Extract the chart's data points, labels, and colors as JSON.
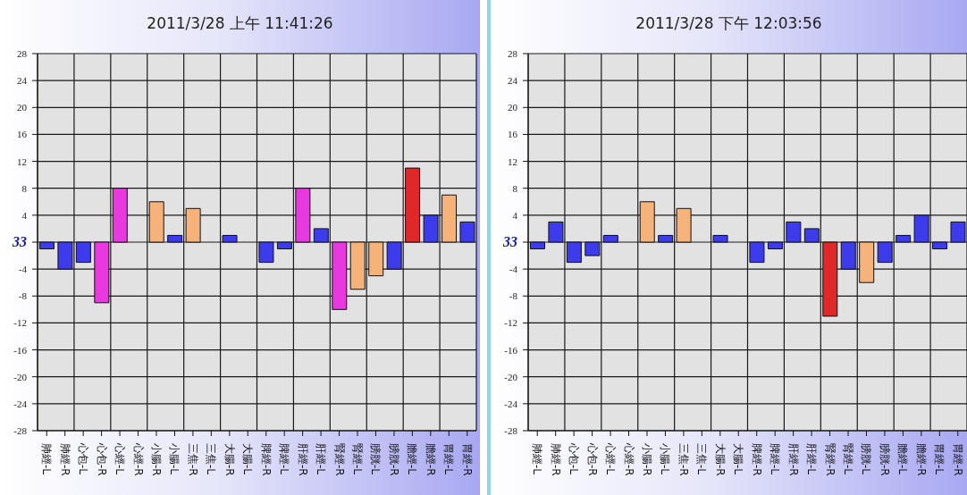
{
  "chart_data": [
    {
      "type": "bar",
      "title": "2011/3/28 上午 11:41:26",
      "categories": [
        "肺經-L",
        "肺經-R",
        "心包-L",
        "心包-R",
        "心經-L",
        "心經-R",
        "小腸-R",
        "小腸-L",
        "三焦-R",
        "三焦-L",
        "大腸-R",
        "大腸-L",
        "脾經-R",
        "脾經-L",
        "肝經-R",
        "肝經-L",
        "腎經-R",
        "腎經-L",
        "膀胱-L",
        "膀胱-R",
        "膽經-L",
        "膽經-R",
        "胃經-L",
        "胃經-R"
      ],
      "values": [
        -1,
        -4,
        -3,
        -9,
        8,
        0,
        6,
        1,
        5,
        0,
        1,
        0,
        -3,
        -1,
        8,
        2,
        -10,
        -7,
        -5,
        -4,
        11,
        4,
        7,
        3
      ],
      "colors": [
        "#3c3cec",
        "#3c3cec",
        "#3c3cec",
        "#e838e0",
        "#e838e0",
        "#3c3cec",
        "#f5b27a",
        "#3c3cec",
        "#f5b27a",
        "#3c3cec",
        "#3c3cec",
        "#3c3cec",
        "#3c3cec",
        "#3c3cec",
        "#e838e0",
        "#3c3cec",
        "#e838e0",
        "#f5b27a",
        "#f5b27a",
        "#3c3cec",
        "#e02828",
        "#3c3cec",
        "#f5b27a",
        "#3c3cec"
      ],
      "ylim": [
        -28,
        28
      ],
      "yticks": [
        -28,
        -24,
        -20,
        -16,
        -12,
        -8,
        -4,
        {
          "value": 0,
          "label": null
        },
        4,
        8,
        12,
        16,
        20,
        24,
        28
      ],
      "grid": true,
      "annotations": [
        "33"
      ]
    },
    {
      "type": "bar",
      "title": "2011/3/28 下午 12:03:56",
      "categories": [
        "肺經-L",
        "肺經-R",
        "心包-L",
        "心包-R",
        "心經-L",
        "心經-R",
        "小腸-R",
        "小腸-L",
        "三焦-R",
        "三焦-L",
        "大腸-R",
        "大腸-L",
        "脾經-R",
        "脾經-L",
        "肝經-R",
        "肝經-L",
        "腎經-R",
        "腎經-L",
        "膀胱-L",
        "膀胱-R",
        "膽經-L",
        "膽經-R",
        "胃經-L",
        "胃經-R"
      ],
      "values": [
        -1,
        3,
        -3,
        -2,
        1,
        0,
        6,
        1,
        5,
        0,
        1,
        0,
        -3,
        -1,
        3,
        2,
        -11,
        -4,
        -6,
        -3,
        1,
        4,
        -1,
        3
      ],
      "colors": [
        "#3c3cec",
        "#3c3cec",
        "#3c3cec",
        "#3c3cec",
        "#3c3cec",
        "#3c3cec",
        "#f5b27a",
        "#3c3cec",
        "#f5b27a",
        "#3c3cec",
        "#3c3cec",
        "#3c3cec",
        "#3c3cec",
        "#3c3cec",
        "#3c3cec",
        "#3c3cec",
        "#e02828",
        "#3c3cec",
        "#f5b27a",
        "#3c3cec",
        "#3c3cec",
        "#3c3cec",
        "#3c3cec",
        "#3c3cec"
      ],
      "ylim": [
        -28,
        28
      ],
      "yticks": [
        -28,
        -24,
        -20,
        -16,
        -12,
        -8,
        -4,
        {
          "value": 0,
          "label": null
        },
        4,
        8,
        12,
        16,
        20,
        24,
        28
      ],
      "grid": true,
      "annotations": [
        "33"
      ]
    }
  ]
}
